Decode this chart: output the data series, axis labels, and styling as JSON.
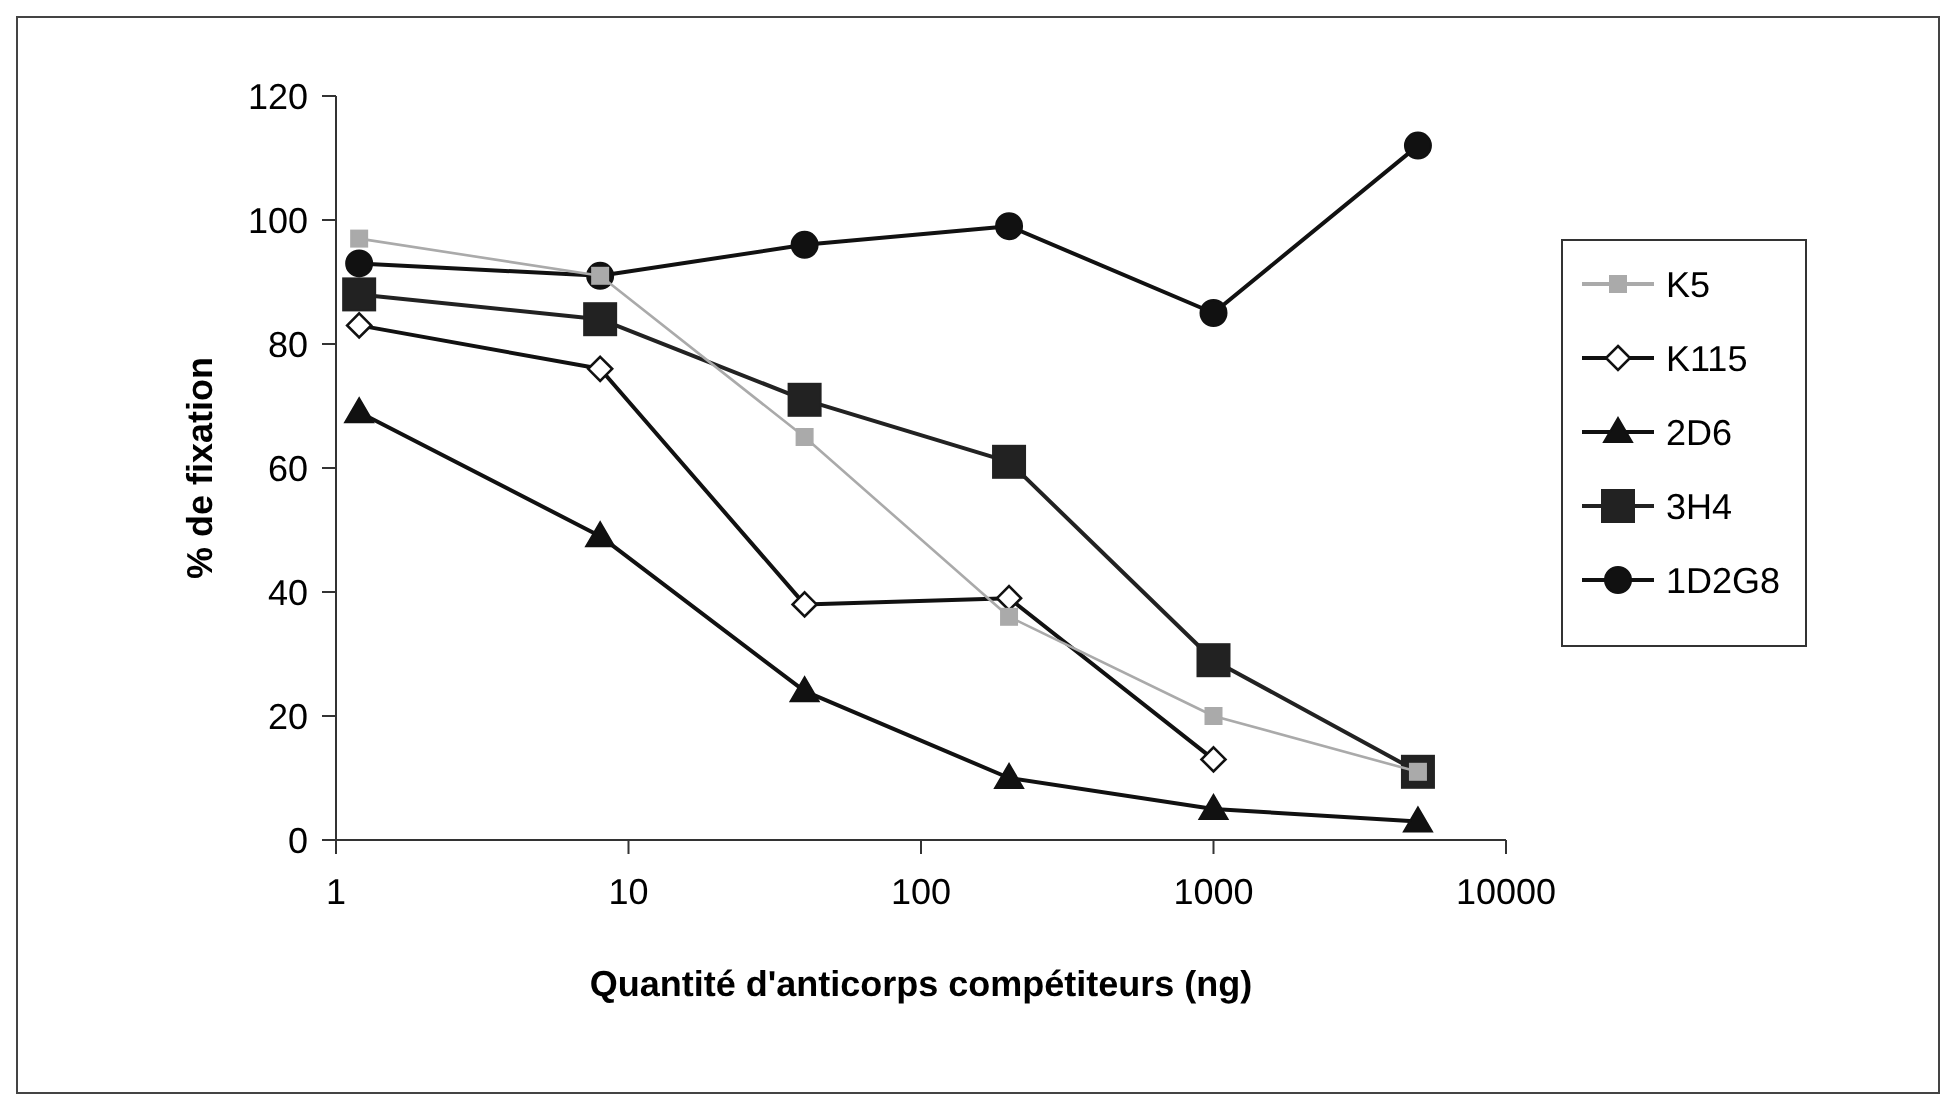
{
  "chart_data": {
    "type": "line",
    "xlabel": "Quantité d'anticorps compétiteurs (ng)",
    "ylabel": "% de fixation",
    "log": "x",
    "xlim": [
      1,
      10000
    ],
    "xticks": [
      1,
      10,
      100,
      1000,
      10000
    ],
    "ylim": [
      0,
      120
    ],
    "yticks": [
      0,
      20,
      40,
      60,
      80,
      100,
      120
    ],
    "grid": false,
    "legend": "right",
    "line_style": "solid",
    "x": [
      1.2,
      8,
      40,
      200,
      1000,
      5000
    ],
    "series": [
      {
        "name": "K5",
        "color": "#aaaaaa",
        "marker": "square",
        "values": [
          97,
          91,
          65,
          36,
          20,
          11
        ]
      },
      {
        "name": "K115",
        "color": "#111111",
        "marker": "diamond",
        "values": [
          83,
          76,
          38,
          39,
          13,
          null
        ]
      },
      {
        "name": "2D6",
        "color": "#111111",
        "marker": "triangle",
        "values": [
          69,
          49,
          24,
          10,
          5,
          3
        ]
      },
      {
        "name": "3H4",
        "color": "#222222",
        "marker": "square",
        "values": [
          88,
          84,
          71,
          61,
          29,
          11
        ]
      },
      {
        "name": "1D2G8",
        "color": "#111111",
        "marker": "circle",
        "values": [
          93,
          91,
          96,
          99,
          85,
          112
        ]
      }
    ]
  }
}
